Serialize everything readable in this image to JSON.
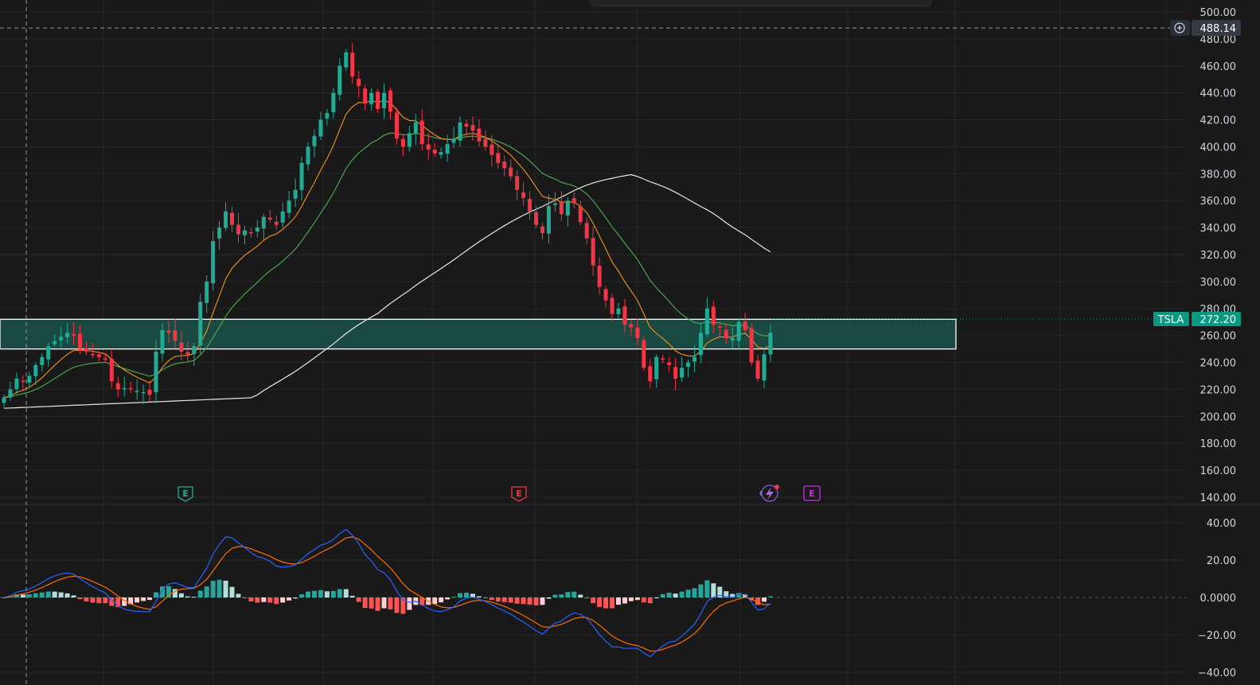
{
  "colors": {
    "background": "#191919",
    "grid": "#262626",
    "up": "#22ab94",
    "down": "#f23645",
    "ema_fast": "#f7931a",
    "ema_mid": "#4caf50",
    "ma_slow": "#e8e8e8",
    "macd_line": "#2962ff",
    "signal_line": "#ff6d00",
    "hist_pos_strong": "#26a69a",
    "hist_pos_weak": "#b2dfdb",
    "hist_neg_strong": "#ff5252",
    "hist_neg_weak": "#ffcdd2",
    "zone_fill": "#1a5a4e",
    "zone_border": "#ffffff",
    "price_tag": "#089981",
    "earnings_purple": "#c82ee8"
  },
  "crosshair": {
    "price_label": "488.14",
    "icon": "plus-circle-icon"
  },
  "price_tag": {
    "symbol": "TSLA",
    "price": "272.20"
  },
  "earnings_markers": [
    {
      "letter": "E",
      "color": "up"
    },
    {
      "letter": "E",
      "color": "down"
    },
    {
      "letter": "E",
      "color": "earnings_purple"
    }
  ],
  "event_icon": "lightning-bolt-icon",
  "chart_data": [
    {
      "type": "candlestick",
      "ylim": [
        140,
        500
      ],
      "yticks": [
        "500.00",
        "480.00",
        "460.00",
        "440.00",
        "420.00",
        "400.00",
        "380.00",
        "360.00",
        "340.00",
        "320.00",
        "300.00",
        "280.00",
        "260.00",
        "240.00",
        "220.00",
        "200.00",
        "180.00",
        "160.00",
        "140.00"
      ],
      "zone": [
        250,
        272
      ],
      "close_series": [
        214,
        220,
        228,
        226,
        230,
        238,
        244,
        252,
        256,
        259,
        262,
        260,
        250,
        248,
        246,
        244,
        242,
        226,
        220,
        221,
        220,
        219,
        218,
        216,
        248,
        264,
        262,
        256,
        248,
        246,
        252,
        285,
        300,
        330,
        340,
        352,
        342,
        335,
        338,
        336,
        340,
        348,
        346,
        342,
        352,
        360,
        368,
        388,
        400,
        408,
        420,
        425,
        440,
        460,
        470,
        452,
        445,
        432,
        440,
        428,
        440,
        426,
        406,
        400,
        410,
        418,
        402,
        398,
        395,
        396,
        402,
        406,
        418,
        415,
        412,
        404,
        400,
        394,
        388,
        384,
        378,
        368,
        362,
        352,
        342,
        336,
        356,
        358,
        350,
        360,
        358,
        344,
        332,
        312,
        296,
        286,
        276,
        280,
        268,
        266,
        258,
        236,
        226,
        244,
        242,
        238,
        228,
        236,
        240,
        244,
        262,
        280,
        268,
        266,
        258,
        258,
        270,
        264,
        240,
        228,
        246,
        262
      ]
    },
    {
      "type": "histogram+line",
      "ylim": [
        -40,
        40
      ],
      "yticks": [
        "40.00",
        "20.00",
        "0.0000",
        "−20.00",
        "−40.00"
      ]
    }
  ]
}
